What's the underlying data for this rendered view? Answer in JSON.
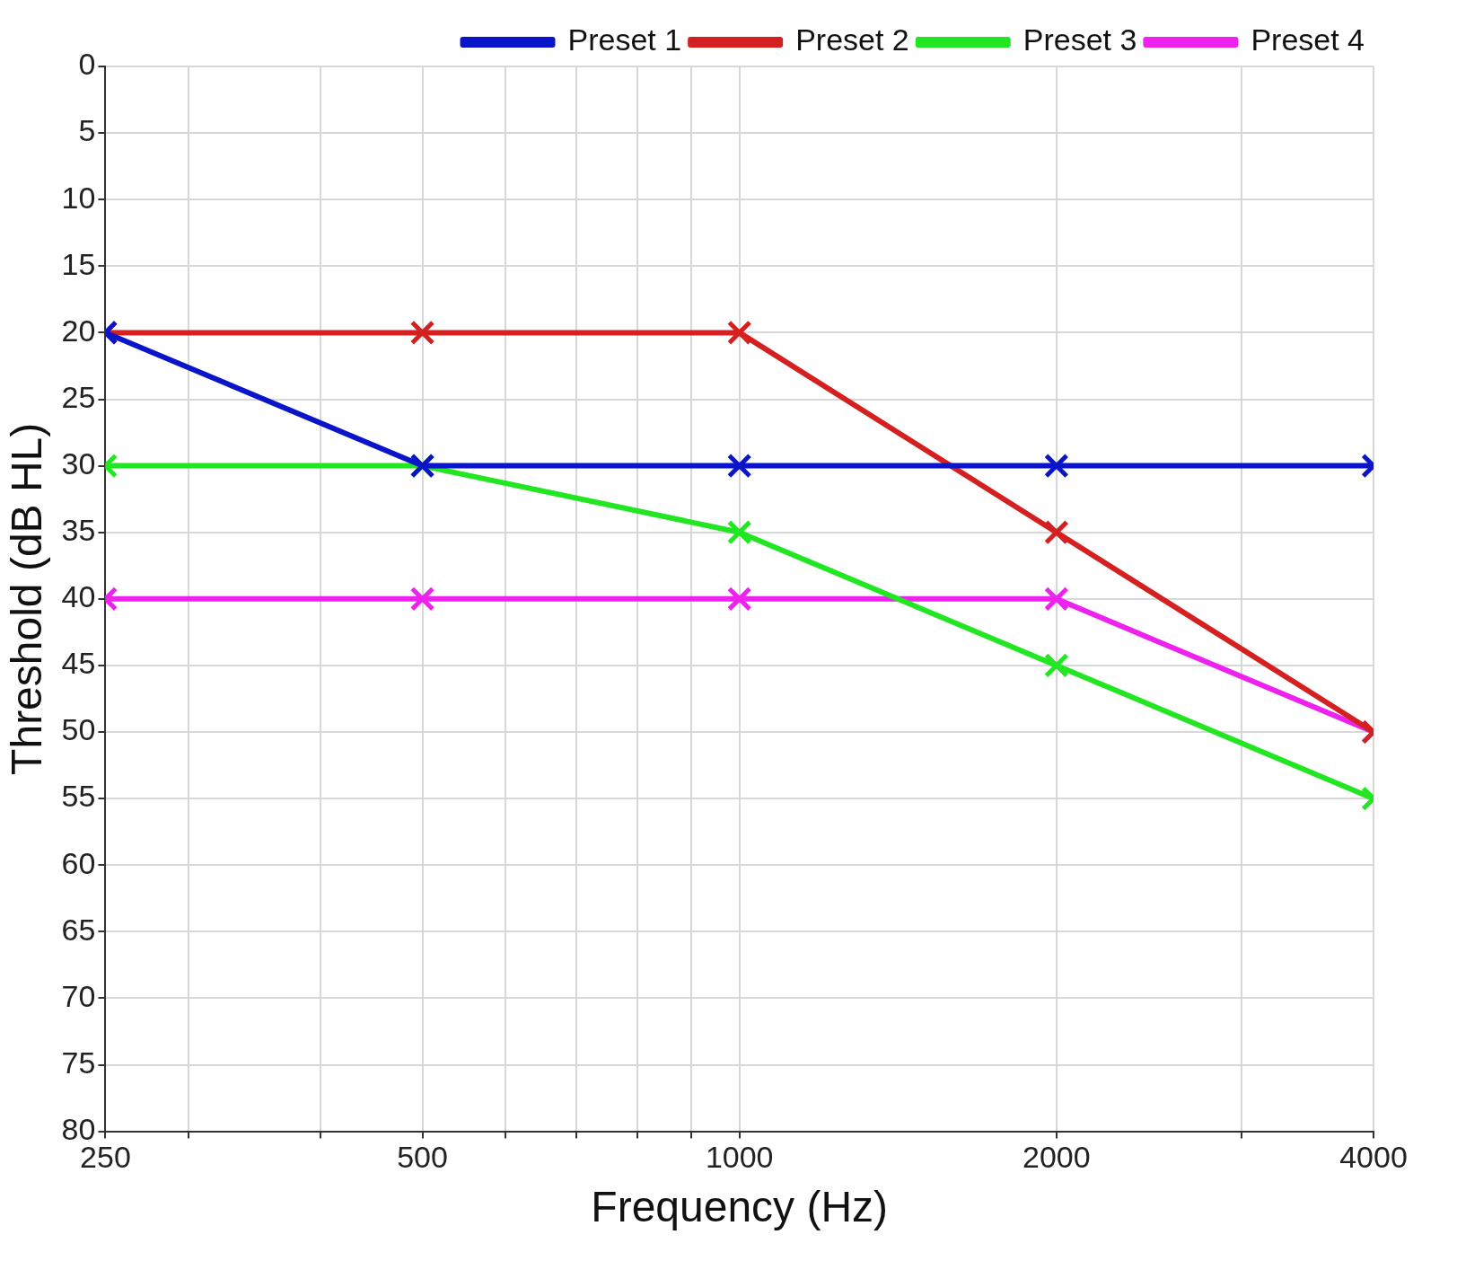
{
  "chart_data": {
    "type": "line",
    "xlabel": "Frequency (Hz)",
    "ylabel": "Threshold (dB HL)",
    "x": [
      250,
      500,
      1000,
      2000,
      4000
    ],
    "series": [
      {
        "name": "Preset 1",
        "color": "#0a14c8",
        "values": [
          20,
          30,
          30,
          30,
          30
        ]
      },
      {
        "name": "Preset 2",
        "color": "#d42020",
        "values": [
          20,
          20,
          20,
          35,
          50
        ]
      },
      {
        "name": "Preset 3",
        "color": "#22e622",
        "values": [
          30,
          30,
          35,
          45,
          55
        ]
      },
      {
        "name": "Preset 4",
        "color": "#ee22ee",
        "values": [
          40,
          40,
          40,
          40,
          50
        ]
      }
    ],
    "log": "x",
    "xlim": [
      250,
      4000
    ],
    "xticks": [
      250,
      {
        "value": 300,
        "label": null
      },
      {
        "value": 400,
        "label": null
      },
      500,
      {
        "value": 600,
        "label": null
      },
      {
        "value": 700,
        "label": null
      },
      {
        "value": 800,
        "label": null
      },
      {
        "value": 900,
        "label": null
      },
      1000,
      2000,
      {
        "value": 3000,
        "label": null
      },
      4000
    ],
    "ylim": [
      80,
      0
    ],
    "yticks": [
      0,
      5,
      10,
      15,
      20,
      25,
      30,
      35,
      40,
      45,
      50,
      55,
      60,
      65,
      70,
      75,
      80
    ],
    "grid": true,
    "legend": "top right",
    "marker": "cross",
    "line_style": "solid"
  }
}
